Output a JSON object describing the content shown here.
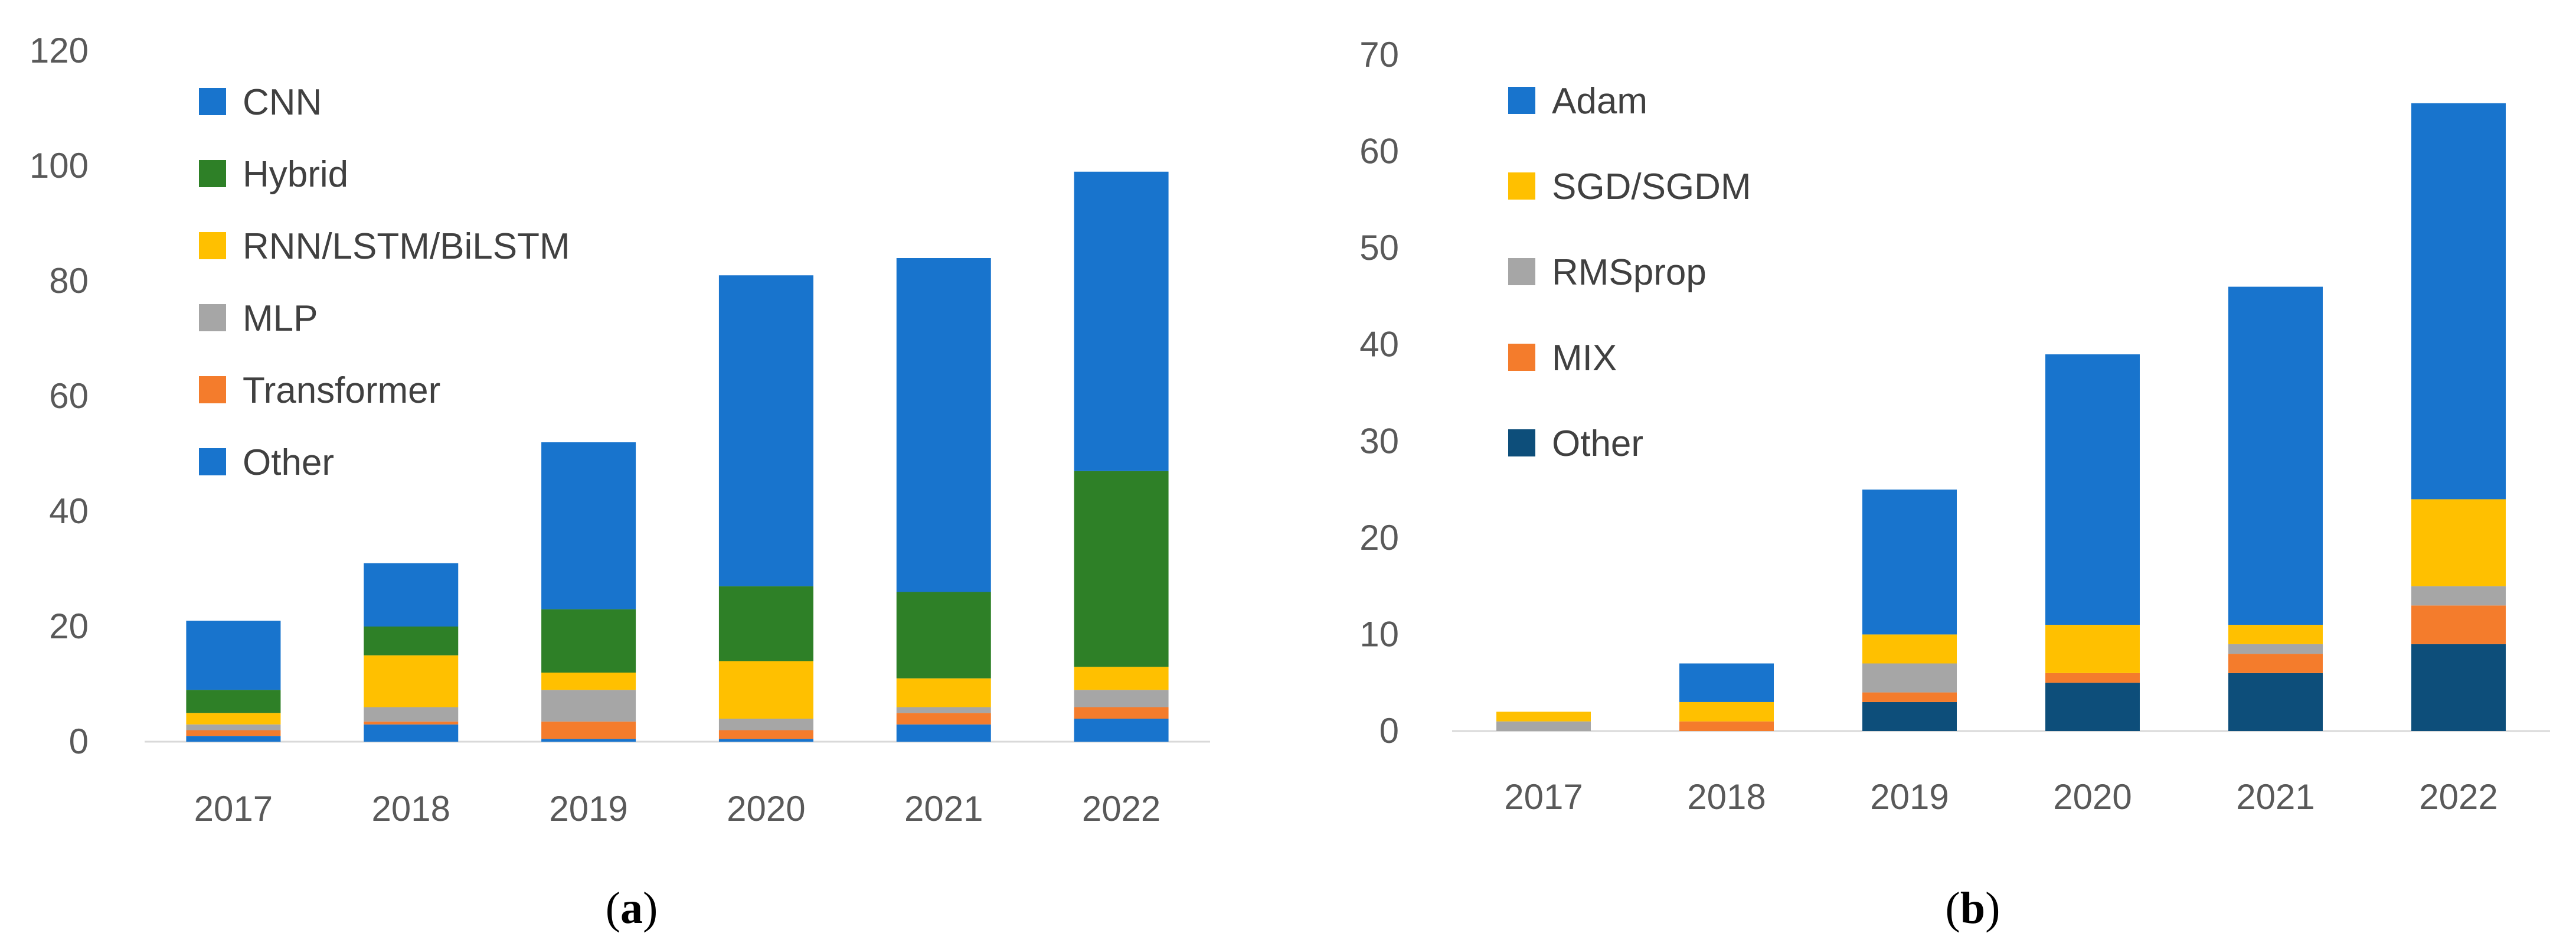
{
  "chart_data": [
    {
      "type": "bar",
      "stacked": true,
      "panel_label": {
        "open": "(",
        "letter": "a",
        "close": ")"
      },
      "categories": [
        "2017",
        "2018",
        "2019",
        "2020",
        "2021",
        "2022"
      ],
      "ylim": [
        0,
        120
      ],
      "yticks": [
        0,
        20,
        40,
        60,
        80,
        100,
        120
      ],
      "grid": false,
      "legend_position": "top-left",
      "series": [
        {
          "name": "Other",
          "color": "#1874CD",
          "values": [
            1,
            3,
            0.5,
            0.5,
            3,
            4
          ]
        },
        {
          "name": "Transformer",
          "color": "#F47C2C",
          "values": [
            1,
            0.5,
            3,
            1.5,
            2,
            2
          ]
        },
        {
          "name": "MLP",
          "color": "#A6A6A6",
          "values": [
            1,
            2.5,
            5.5,
            2,
            1,
            3
          ]
        },
        {
          "name": "RNN/LSTM/BiLSTM",
          "color": "#FFC000",
          "values": [
            2,
            9,
            3,
            10,
            5,
            4
          ]
        },
        {
          "name": "Hybrid",
          "color": "#2E8027",
          "values": [
            4,
            5,
            11,
            13,
            15,
            34
          ]
        },
        {
          "name": "CNN",
          "color": "#1874CD",
          "values": [
            12,
            11,
            29,
            54,
            58,
            52
          ]
        }
      ]
    },
    {
      "type": "bar",
      "stacked": true,
      "panel_label": {
        "open": "(",
        "letter": "b",
        "close": ")"
      },
      "categories": [
        "2017",
        "2018",
        "2019",
        "2020",
        "2021",
        "2022"
      ],
      "ylim": [
        0,
        70
      ],
      "yticks": [
        0,
        10,
        20,
        30,
        40,
        50,
        60,
        70
      ],
      "grid": false,
      "legend_position": "top-left",
      "series": [
        {
          "name": "Other",
          "color": "#0D4E7A",
          "values": [
            0,
            0,
            3,
            5,
            6,
            9
          ]
        },
        {
          "name": "MIX",
          "color": "#F47C2C",
          "values": [
            0,
            1,
            1,
            1,
            2,
            4
          ]
        },
        {
          "name": "RMSprop",
          "color": "#A6A6A6",
          "values": [
            1,
            0,
            3,
            0,
            1,
            2
          ]
        },
        {
          "name": "SGD/SGDM",
          "color": "#FFC000",
          "values": [
            1,
            2,
            3,
            5,
            2,
            9
          ]
        },
        {
          "name": "Adam",
          "color": "#1874CD",
          "values": [
            0,
            4,
            15,
            28,
            35,
            41
          ]
        }
      ]
    }
  ]
}
